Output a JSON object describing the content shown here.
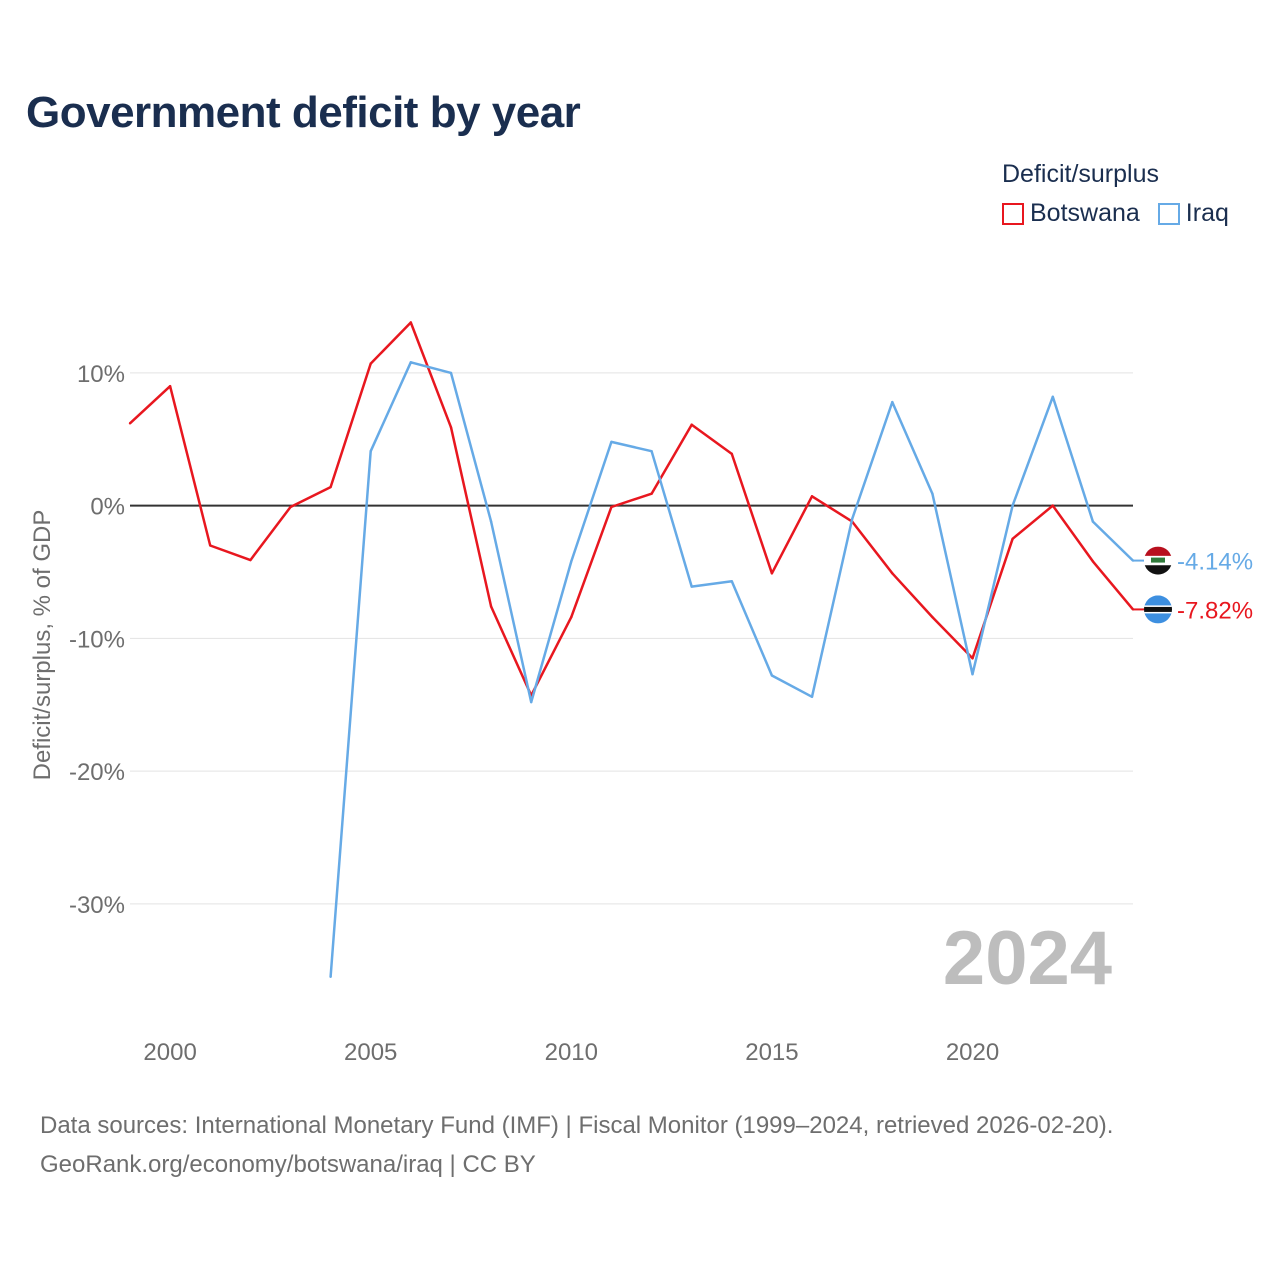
{
  "title": "Government deficit by year",
  "legend": {
    "title": "Deficit/surplus",
    "items": [
      {
        "label": "Botswana",
        "color": "#e8171f"
      },
      {
        "label": "Iraq",
        "color": "#66aae6"
      }
    ]
  },
  "chart_data": {
    "type": "line",
    "title": "Government deficit by year",
    "xlabel": "",
    "ylabel": "Deficit/surplus, % of GDP",
    "xlim": [
      1999,
      2024
    ],
    "ylim": [
      -38,
      17
    ],
    "x_ticks": [
      2000,
      2005,
      2010,
      2015,
      2020
    ],
    "y_ticks": [
      10,
      0,
      -10,
      -20,
      -30
    ],
    "y_tick_labels": [
      "10%",
      "0%",
      "-10%",
      "-20%",
      "-30%"
    ],
    "zero_line": true,
    "year_watermark": "2024",
    "series": [
      {
        "name": "Botswana",
        "color": "#e8171f",
        "end_label": "-7.82%",
        "flag": "botswana",
        "points": [
          [
            1999,
            6.2
          ],
          [
            2000,
            9.0
          ],
          [
            2001,
            -3.0
          ],
          [
            2002,
            -4.1
          ],
          [
            2003,
            -0.1
          ],
          [
            2004,
            1.4
          ],
          [
            2005,
            10.7
          ],
          [
            2006,
            13.8
          ],
          [
            2007,
            5.9
          ],
          [
            2008,
            -7.6
          ],
          [
            2009,
            -14.3
          ],
          [
            2010,
            -8.4
          ],
          [
            2011,
            -0.1
          ],
          [
            2012,
            0.9
          ],
          [
            2013,
            6.1
          ],
          [
            2014,
            3.9
          ],
          [
            2015,
            -5.1
          ],
          [
            2016,
            0.7
          ],
          [
            2017,
            -1.2
          ],
          [
            2018,
            -5.1
          ],
          [
            2019,
            -8.4
          ],
          [
            2020,
            -11.5
          ],
          [
            2021,
            -2.5
          ],
          [
            2022,
            0.0
          ],
          [
            2023,
            -4.2
          ],
          [
            2024,
            -7.82
          ]
        ]
      },
      {
        "name": "Iraq",
        "color": "#66aae6",
        "end_label": "-4.14%",
        "flag": "iraq",
        "points": [
          [
            2004,
            -35.5
          ],
          [
            2005,
            4.1
          ],
          [
            2006,
            10.8
          ],
          [
            2007,
            10.0
          ],
          [
            2008,
            -1.2
          ],
          [
            2009,
            -14.8
          ],
          [
            2010,
            -4.2
          ],
          [
            2011,
            4.8
          ],
          [
            2012,
            4.1
          ],
          [
            2013,
            -6.1
          ],
          [
            2014,
            -5.7
          ],
          [
            2015,
            -12.8
          ],
          [
            2016,
            -14.4
          ],
          [
            2017,
            -1.0
          ],
          [
            2018,
            7.8
          ],
          [
            2019,
            0.9
          ],
          [
            2020,
            -12.7
          ],
          [
            2021,
            0.0
          ],
          [
            2022,
            8.2
          ],
          [
            2023,
            -1.2
          ],
          [
            2024,
            -4.14
          ]
        ]
      }
    ]
  },
  "source": {
    "line1": "Data sources: International Monetary Fund (IMF) | Fiscal Monitor (1999–2024, retrieved 2026-02-20).",
    "line2": "GeoRank.org/economy/botswana/iraq | CC BY"
  }
}
